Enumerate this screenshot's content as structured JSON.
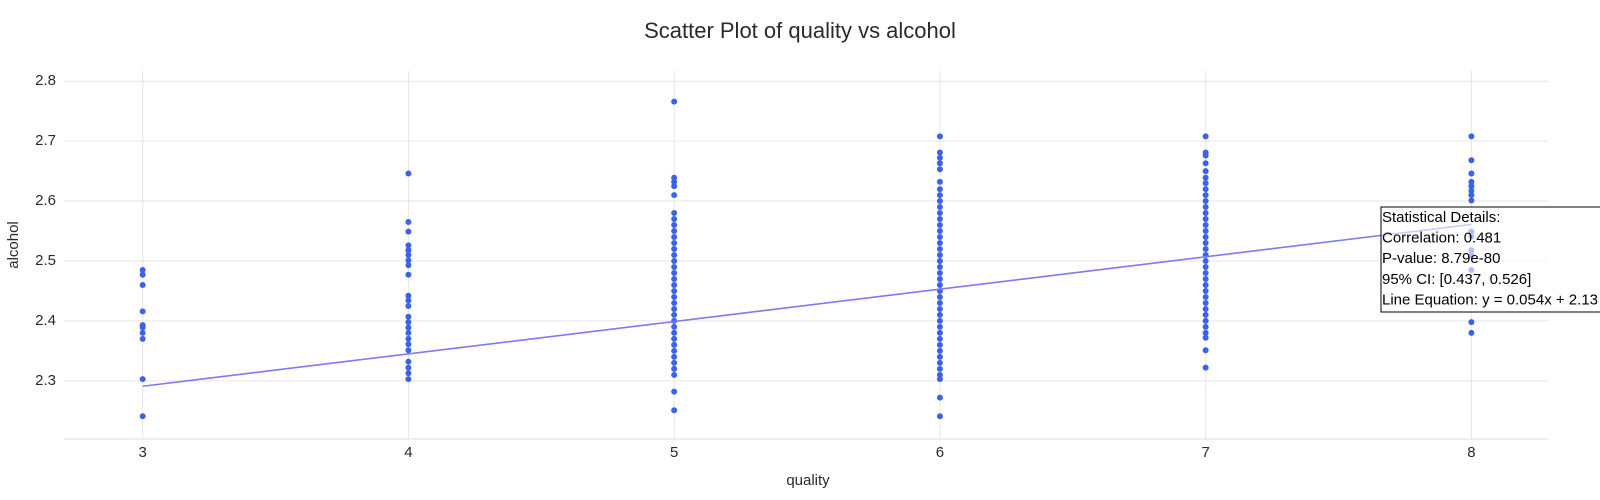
{
  "chart_data": {
    "type": "scatter",
    "title": "Scatter Plot of quality vs alcohol",
    "x_label": "quality",
    "y_label": "alcohol",
    "xlim": [
      2.704,
      8.292
    ],
    "ylim": [
      2.203,
      2.817
    ],
    "xticks": [
      3,
      4,
      5,
      6,
      7,
      8
    ],
    "yticks": [
      2.3,
      2.4,
      2.5,
      2.6,
      2.7,
      2.8
    ],
    "grid": true,
    "series": [
      {
        "color": "#3b62e8",
        "x": [
          3,
          3,
          3,
          3,
          3,
          3,
          3,
          3,
          3,
          3,
          4,
          4,
          4,
          4,
          4,
          4,
          4,
          4,
          4,
          4,
          4,
          4,
          4,
          4,
          4,
          4,
          4,
          4,
          4,
          4,
          4,
          4,
          4,
          5,
          5,
          5,
          5,
          5,
          5,
          5,
          5,
          5,
          5,
          5,
          5,
          5,
          5,
          5,
          5,
          5,
          5,
          5,
          5,
          5,
          5,
          5,
          5,
          5,
          5,
          5,
          5,
          5,
          5,
          5,
          5,
          5,
          5,
          5,
          6,
          6,
          6,
          6,
          6,
          6,
          6,
          6,
          6,
          6,
          6,
          6,
          6,
          6,
          6,
          6,
          6,
          6,
          6,
          6,
          6,
          6,
          6,
          6,
          6,
          6,
          6,
          6,
          6,
          6,
          6,
          6,
          6,
          6,
          6,
          6,
          6,
          6,
          6,
          6,
          6,
          7,
          7,
          7,
          7,
          7,
          7,
          7,
          7,
          7,
          7,
          7,
          7,
          7,
          7,
          7,
          7,
          7,
          7,
          7,
          7,
          7,
          7,
          7,
          7,
          7,
          7,
          7,
          7,
          7,
          7,
          7,
          7,
          7,
          7,
          7,
          8,
          8,
          8,
          8,
          8,
          8,
          8,
          8,
          8,
          8,
          8,
          8,
          8,
          8,
          8
        ],
        "values": [
          2.485,
          2.477,
          2.46,
          2.416,
          2.393,
          2.389,
          2.38,
          2.37,
          2.303,
          2.241,
          2.646,
          2.565,
          2.549,
          2.526,
          2.518,
          2.51,
          2.501,
          2.493,
          2.477,
          2.442,
          2.434,
          2.425,
          2.407,
          2.398,
          2.389,
          2.38,
          2.37,
          2.361,
          2.351,
          2.332,
          2.322,
          2.313,
          2.303,
          2.766,
          2.639,
          2.632,
          2.625,
          2.61,
          2.58,
          2.57,
          2.56,
          2.55,
          2.54,
          2.53,
          2.52,
          2.51,
          2.5,
          2.49,
          2.48,
          2.47,
          2.46,
          2.45,
          2.44,
          2.43,
          2.42,
          2.41,
          2.4,
          2.39,
          2.38,
          2.37,
          2.36,
          2.35,
          2.34,
          2.33,
          2.32,
          2.31,
          2.282,
          2.251,
          2.708,
          2.681,
          2.672,
          2.663,
          2.653,
          2.632,
          2.62,
          2.61,
          2.6,
          2.59,
          2.58,
          2.57,
          2.56,
          2.55,
          2.54,
          2.53,
          2.52,
          2.51,
          2.5,
          2.49,
          2.48,
          2.47,
          2.46,
          2.45,
          2.44,
          2.43,
          2.42,
          2.41,
          2.4,
          2.39,
          2.38,
          2.37,
          2.36,
          2.35,
          2.34,
          2.33,
          2.32,
          2.31,
          2.303,
          2.272,
          2.241,
          2.708,
          2.681,
          2.676,
          2.663,
          2.65,
          2.639,
          2.63,
          2.62,
          2.61,
          2.6,
          2.59,
          2.58,
          2.57,
          2.56,
          2.55,
          2.54,
          2.53,
          2.52,
          2.51,
          2.5,
          2.49,
          2.48,
          2.47,
          2.46,
          2.45,
          2.44,
          2.43,
          2.42,
          2.41,
          2.4,
          2.39,
          2.38,
          2.372,
          2.351,
          2.322,
          2.708,
          2.668,
          2.646,
          2.632,
          2.625,
          2.617,
          2.61,
          2.601,
          2.549,
          2.541,
          2.518,
          2.51,
          2.485,
          2.398,
          2.38
        ]
      }
    ],
    "fit": {
      "color": "#7b7bf2",
      "x": [
        3,
        8
      ],
      "values": [
        2.291,
        2.561
      ]
    },
    "annotation": [
      "Statistical Details:",
      "Correlation: 0.481",
      "P-value: 8.79e-80",
      "95% CI: [0.437, 0.526]",
      "Line Equation: y = 0.054x + 2.13"
    ]
  }
}
